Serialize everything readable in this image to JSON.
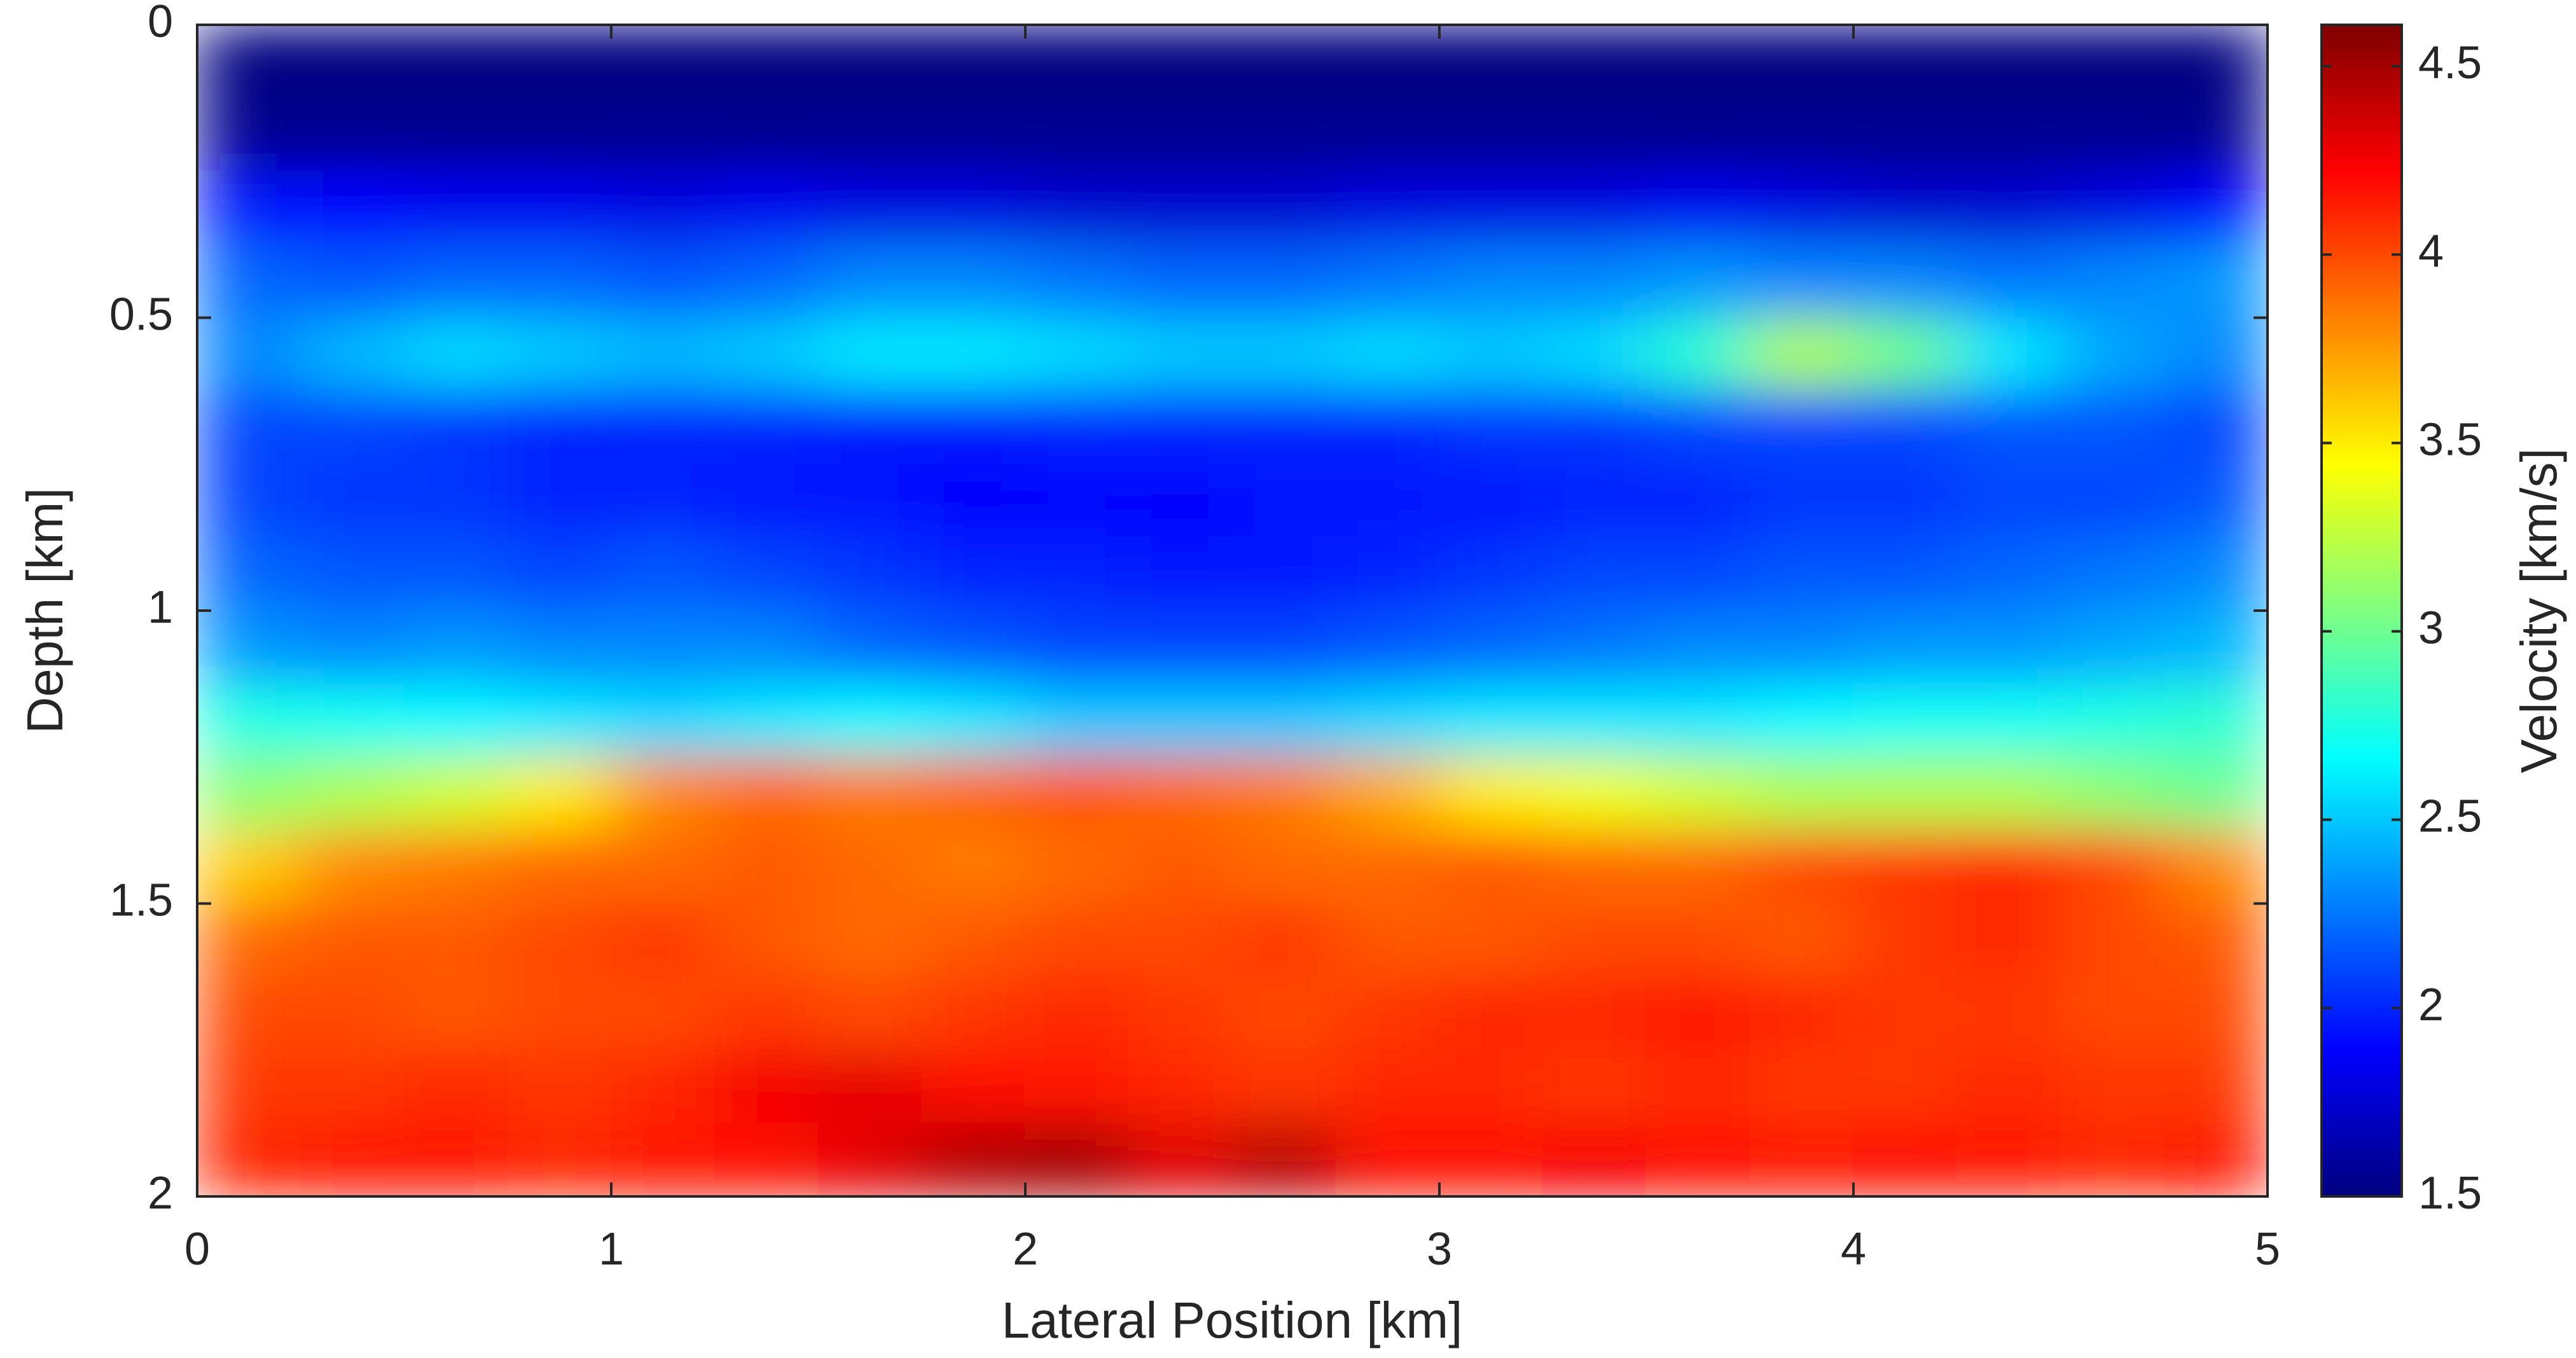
{
  "chart_data": {
    "type": "heatmap",
    "xlabel": "Lateral Position [km]",
    "ylabel": "Depth [km]",
    "colorbar_label": "Velocity [km/s]",
    "colormap": "jet",
    "x": [
      0.125,
      0.375,
      0.625,
      0.875,
      1.125,
      1.375,
      1.625,
      1.875,
      2.125,
      2.375,
      2.625,
      2.875,
      3.125,
      3.375,
      3.625,
      3.875,
      4.125,
      4.375,
      4.625,
      4.875
    ],
    "y": [
      0.0625,
      0.1875,
      0.3125,
      0.4375,
      0.5625,
      0.6875,
      0.8125,
      0.9375,
      1.0625,
      1.1875,
      1.3125,
      1.4375,
      1.5625,
      1.6875,
      1.8125,
      1.9375
    ],
    "z": [
      [
        1.5,
        1.5,
        1.5,
        1.5,
        1.5,
        1.5,
        1.5,
        1.5,
        1.5,
        1.5,
        1.5,
        1.5,
        1.5,
        1.5,
        1.5,
        1.5,
        1.5,
        1.5,
        1.5,
        1.5
      ],
      [
        1.55,
        1.55,
        1.55,
        1.55,
        1.55,
        1.55,
        1.55,
        1.55,
        1.55,
        1.55,
        1.55,
        1.55,
        1.55,
        1.55,
        1.55,
        1.55,
        1.55,
        1.55,
        1.55,
        1.55
      ],
      [
        1.95,
        1.9,
        1.85,
        1.85,
        1.8,
        1.85,
        1.8,
        1.8,
        1.75,
        1.75,
        1.75,
        1.8,
        1.8,
        1.8,
        1.85,
        1.8,
        1.75,
        1.75,
        1.8,
        1.9
      ],
      [
        2.2,
        2.15,
        2.2,
        2.2,
        2.15,
        2.2,
        2.3,
        2.3,
        2.25,
        2.2,
        2.2,
        2.25,
        2.3,
        2.3,
        2.35,
        2.3,
        2.3,
        2.25,
        2.3,
        2.35
      ],
      [
        2.3,
        2.45,
        2.55,
        2.5,
        2.45,
        2.5,
        2.6,
        2.6,
        2.55,
        2.5,
        2.5,
        2.55,
        2.5,
        2.55,
        2.8,
        3.2,
        3.0,
        2.6,
        2.4,
        2.3
      ],
      [
        2.1,
        2.1,
        2.05,
        2.0,
        2.0,
        2.0,
        1.95,
        1.95,
        2.0,
        2.0,
        2.0,
        2.0,
        2.05,
        2.05,
        2.1,
        2.1,
        2.1,
        2.15,
        2.15,
        2.1
      ],
      [
        2.1,
        2.05,
        2.05,
        2.0,
        2.0,
        1.95,
        1.95,
        1.9,
        1.9,
        1.9,
        1.95,
        1.95,
        1.95,
        2.0,
        2.0,
        2.05,
        2.05,
        2.1,
        2.1,
        2.15
      ],
      [
        2.2,
        2.15,
        2.15,
        2.1,
        2.15,
        2.1,
        2.05,
        2.0,
        2.0,
        1.95,
        1.95,
        2.0,
        2.05,
        2.1,
        2.1,
        2.15,
        2.15,
        2.2,
        2.25,
        2.3
      ],
      [
        2.35,
        2.3,
        2.35,
        2.3,
        2.3,
        2.3,
        2.2,
        2.15,
        2.1,
        2.1,
        2.1,
        2.15,
        2.2,
        2.25,
        2.3,
        2.3,
        2.35,
        2.35,
        2.4,
        2.45
      ],
      [
        2.75,
        2.7,
        2.65,
        2.6,
        2.55,
        2.6,
        2.65,
        2.6,
        2.5,
        2.5,
        2.5,
        2.55,
        2.6,
        2.6,
        2.6,
        2.65,
        2.7,
        2.7,
        2.75,
        2.8
      ],
      [
        3.1,
        3.2,
        3.3,
        3.5,
        3.8,
        3.9,
        3.85,
        3.9,
        3.95,
        3.9,
        3.85,
        3.7,
        3.5,
        3.4,
        3.3,
        3.2,
        3.2,
        3.2,
        3.1,
        3.0
      ],
      [
        3.6,
        3.8,
        3.85,
        3.9,
        3.9,
        3.95,
        3.9,
        3.85,
        3.9,
        3.95,
        3.9,
        3.9,
        3.95,
        3.9,
        3.9,
        4.0,
        4.05,
        4.1,
        4.0,
        3.8
      ],
      [
        3.9,
        3.95,
        3.95,
        4.0,
        4.05,
        3.95,
        3.9,
        3.95,
        4.0,
        4.0,
        4.05,
        3.95,
        3.95,
        4.0,
        4.0,
        3.95,
        4.05,
        4.1,
        4.0,
        3.95
      ],
      [
        4.0,
        4.0,
        3.95,
        4.0,
        4.0,
        4.05,
        4.0,
        4.05,
        4.1,
        4.05,
        4.0,
        4.05,
        4.1,
        4.1,
        4.15,
        4.1,
        4.05,
        4.05,
        4.0,
        4.0
      ],
      [
        4.05,
        4.05,
        4.1,
        4.05,
        4.1,
        4.25,
        4.3,
        4.2,
        4.15,
        4.1,
        4.05,
        4.1,
        4.1,
        4.05,
        4.1,
        4.05,
        4.05,
        4.1,
        4.05,
        4.05
      ],
      [
        4.1,
        4.15,
        4.15,
        4.1,
        4.15,
        4.2,
        4.3,
        4.45,
        4.5,
        4.3,
        4.45,
        4.2,
        4.2,
        4.25,
        4.2,
        4.15,
        4.2,
        4.15,
        4.1,
        4.15
      ]
    ],
    "xlim": [
      0,
      5
    ],
    "xticks": [
      0,
      1,
      2,
      3,
      4,
      5
    ],
    "ylim": [
      0,
      2
    ],
    "yticks": [
      0,
      0.5,
      1,
      1.5,
      2
    ],
    "y_reversed": true,
    "clim": [
      1.5,
      4.61
    ],
    "cticks": [
      1.5,
      2,
      2.5,
      3,
      3.5,
      4,
      4.5
    ]
  }
}
